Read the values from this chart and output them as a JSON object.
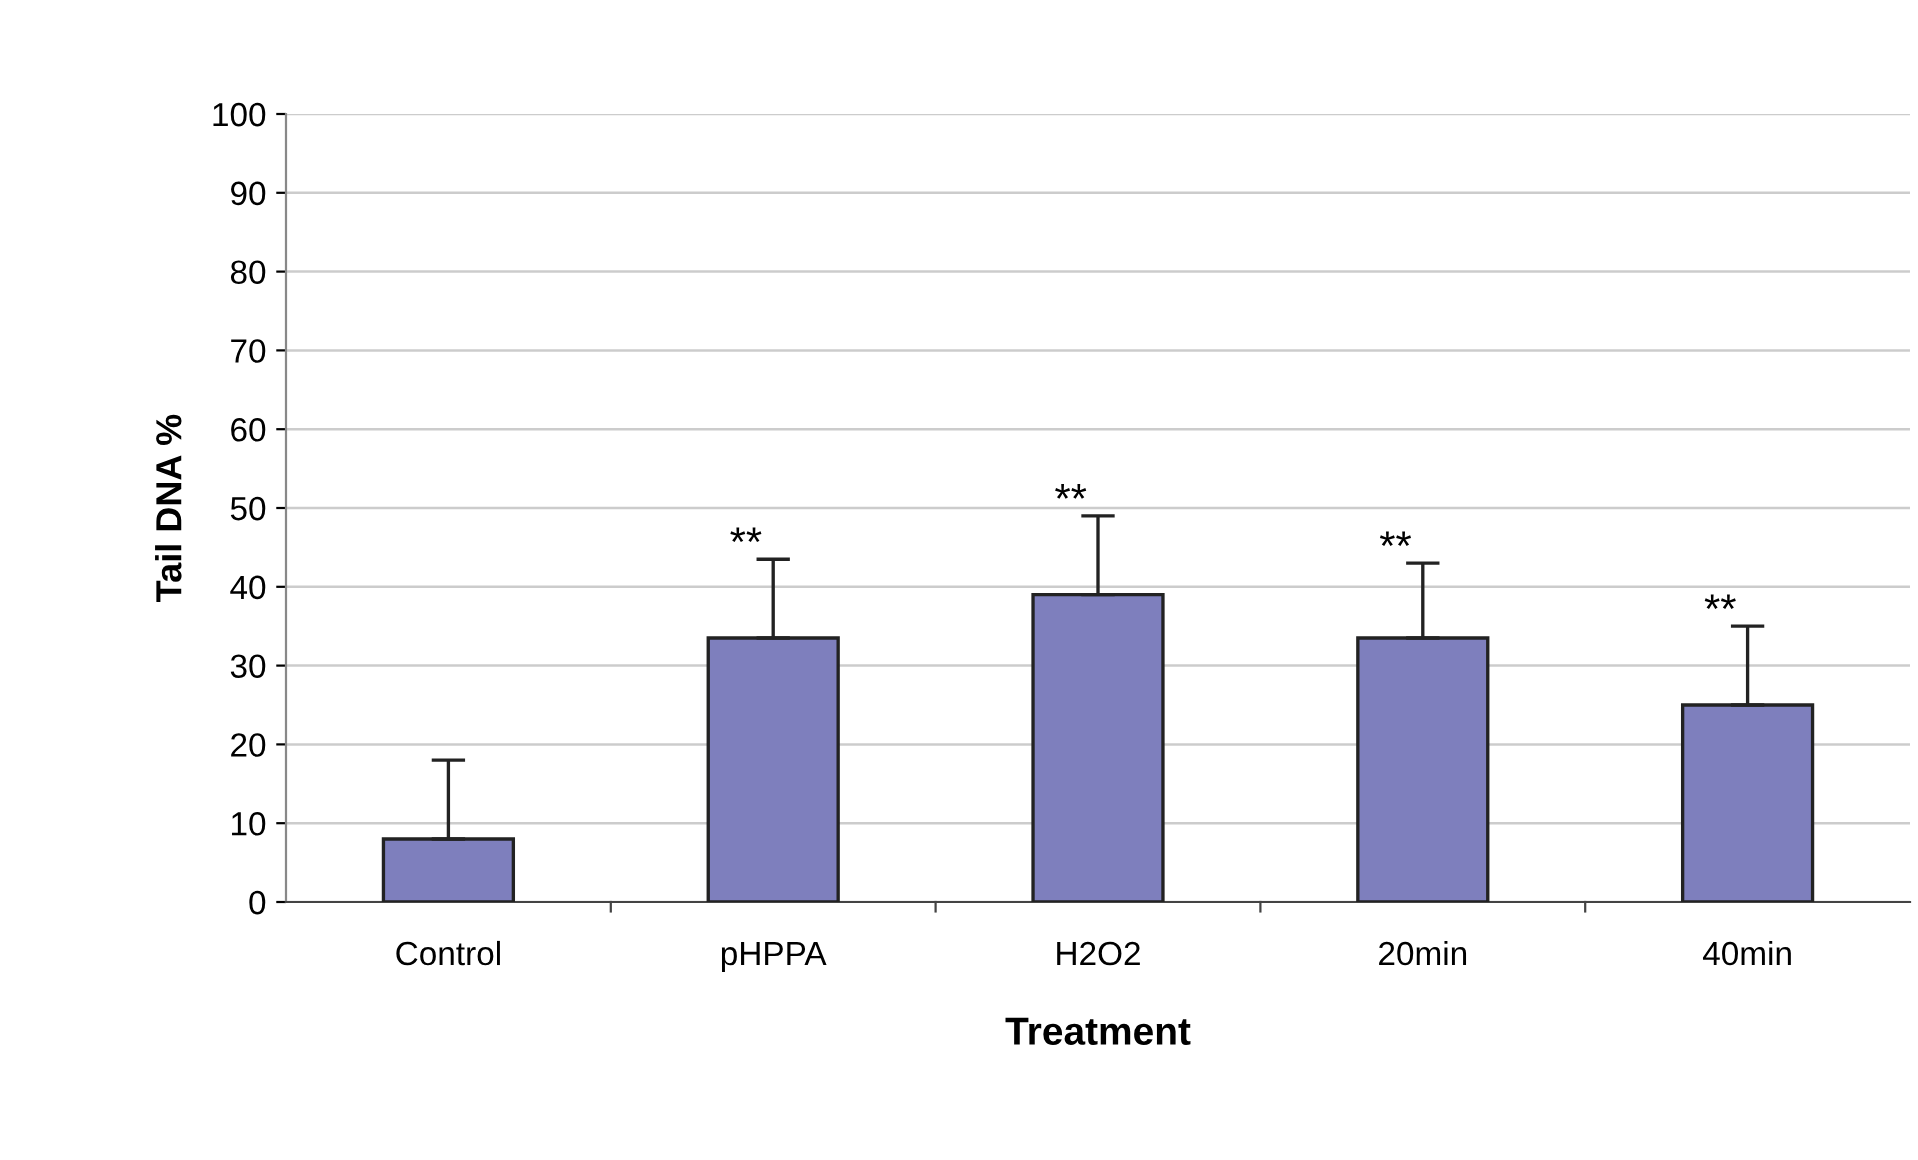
{
  "chart_data": {
    "type": "bar",
    "xlabel": "Treatment",
    "ylabel": "Tail DNA %",
    "categories": [
      "Control",
      "pHPPA",
      "H2O2",
      "20min",
      "40min"
    ],
    "values": [
      8,
      33.5,
      39,
      33.5,
      25
    ],
    "errors": [
      [
        8,
        18
      ],
      [
        33.5,
        43.5
      ],
      [
        39,
        49
      ],
      [
        33.5,
        43
      ],
      [
        25,
        35
      ]
    ],
    "color": "#7e7fbd",
    "ylim": [
      0,
      100
    ],
    "yticks": [
      0,
      10,
      20,
      30,
      40,
      50,
      60,
      70,
      80,
      90,
      100
    ],
    "grid": "y",
    "annotations": [
      {
        "text": "**",
        "x": "pHPPA",
        "y": 43.5
      },
      {
        "text": "**",
        "x": "H2O2",
        "y": 49
      },
      {
        "text": "**",
        "x": "20min",
        "y": 43
      },
      {
        "text": "**",
        "x": "40min",
        "y": 35
      }
    ]
  }
}
